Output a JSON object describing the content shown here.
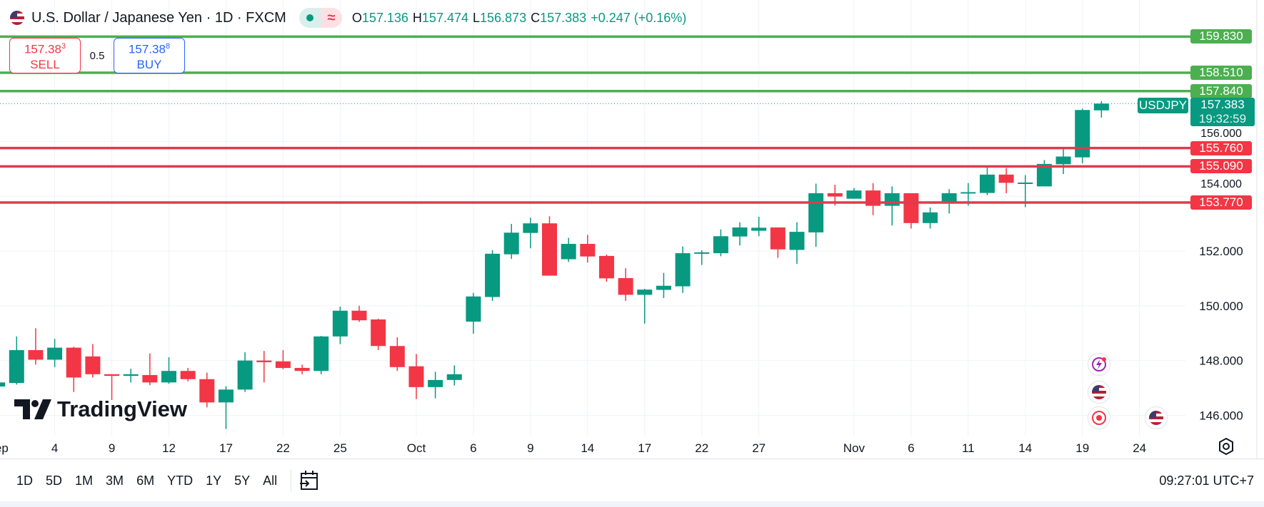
{
  "header": {
    "title": "U.S. Dollar / Japanese Yen · 1D · FXCM",
    "market_status": "open",
    "ohlc": {
      "o_label": "O",
      "o": "157.136",
      "h_label": "H",
      "h": "157.474",
      "l_label": "L",
      "l": "156.873",
      "c_label": "C",
      "c": "157.383",
      "change": "+0.247 (+0.16%)"
    }
  },
  "trade": {
    "sell_price": "157.38",
    "sell_sup": "3",
    "sell_label": "SELL",
    "spread": "0.5",
    "buy_price": "157.38",
    "buy_sup": "8",
    "buy_label": "BUY"
  },
  "levels": [
    {
      "price": 159.83,
      "label": "159.830",
      "color": "#4caf50"
    },
    {
      "price": 158.51,
      "label": "158.510",
      "color": "#4caf50"
    },
    {
      "price": 157.84,
      "label": "157.840",
      "color": "#4caf50"
    },
    {
      "price": 155.76,
      "label": "155.760",
      "color": "#dd3c4f"
    },
    {
      "price": 155.09,
      "label": "155.090",
      "color": "#dd3c4f"
    },
    {
      "price": 153.77,
      "label": "153.770",
      "color": "#dd3c4f"
    }
  ],
  "current": {
    "symbol": "USDJPY",
    "price": "157.383",
    "countdown": "19:32:59"
  },
  "price_axis": [
    "146.000",
    "148.000",
    "150.000",
    "152.000",
    "154.000",
    "156.000"
  ],
  "watermark": "TradingView",
  "ranges": [
    "1D",
    "5D",
    "1M",
    "3M",
    "6M",
    "YTD",
    "1Y",
    "5Y",
    "All"
  ],
  "clock": "09:27:01 UTC+7",
  "colors": {
    "up": "#089981",
    "down": "#f23645"
  },
  "icons": [
    "flag-us-icon",
    "market-open-icon",
    "wave-icon",
    "calendar-goto-icon",
    "settings-icon",
    "lightning-event-icon",
    "us-flag-event-icon",
    "record-event-icon"
  ],
  "chart_data": {
    "type": "candlestick",
    "ylim": [
      145.2,
      160.5
    ],
    "grid": true,
    "x_ticks": [
      {
        "label": "Sep",
        "date": "Sep 1"
      },
      {
        "label": "4",
        "date": "Sep 4"
      },
      {
        "label": "9",
        "date": "Sep 9"
      },
      {
        "label": "12",
        "date": "Sep 12"
      },
      {
        "label": "17",
        "date": "Sep 17"
      },
      {
        "label": "22",
        "date": "Sep 22"
      },
      {
        "label": "25",
        "date": "Sep 25"
      },
      {
        "label": "Oct",
        "date": "Oct 1"
      },
      {
        "label": "6",
        "date": "Oct 6"
      },
      {
        "label": "9",
        "date": "Oct 9"
      },
      {
        "label": "14",
        "date": "Oct 14"
      },
      {
        "label": "17",
        "date": "Oct 17"
      },
      {
        "label": "22",
        "date": "Oct 22"
      },
      {
        "label": "27",
        "date": "Oct 27"
      },
      {
        "label": "Nov",
        "date": "Nov 3"
      },
      {
        "label": "6",
        "date": "Nov 6"
      },
      {
        "label": "11",
        "date": "Nov 11"
      },
      {
        "label": "14",
        "date": "Nov 14"
      },
      {
        "label": "19",
        "date": "Nov 19"
      },
      {
        "label": "24",
        "date": "Nov 24"
      }
    ],
    "candles": [
      [
        "Sep 1",
        147.05,
        147.3,
        146.95,
        147.2
      ],
      [
        "Sep 2",
        147.18,
        148.88,
        147.12,
        148.38
      ],
      [
        "Sep 3",
        148.38,
        149.18,
        147.85,
        148.03
      ],
      [
        "Sep 4",
        148.03,
        148.79,
        147.76,
        148.47
      ],
      [
        "Sep 5",
        148.47,
        148.5,
        146.85,
        147.38
      ],
      [
        "Sep 8",
        148.15,
        148.6,
        147.38,
        147.5
      ],
      [
        "Sep 9",
        147.5,
        147.5,
        146.56,
        147.44
      ],
      [
        "Sep 10",
        147.44,
        147.7,
        147.2,
        147.5
      ],
      [
        "Sep 11",
        147.47,
        148.26,
        147.1,
        147.2
      ],
      [
        "Sep 12",
        147.2,
        148.12,
        147.15,
        147.62
      ],
      [
        "Sep 15",
        147.62,
        147.73,
        147.24,
        147.32
      ],
      [
        "Sep 16",
        147.32,
        147.56,
        146.29,
        146.47
      ],
      [
        "Sep 17",
        146.47,
        147.06,
        145.5,
        146.94
      ],
      [
        "Sep 18",
        146.94,
        148.3,
        146.85,
        148.0
      ],
      [
        "Sep 19",
        148.0,
        148.35,
        147.2,
        147.94
      ],
      [
        "Sep 22",
        147.97,
        148.38,
        147.68,
        147.73
      ],
      [
        "Sep 23",
        147.73,
        147.85,
        147.5,
        147.62
      ],
      [
        "Sep 24",
        147.62,
        148.9,
        147.5,
        148.88
      ],
      [
        "Sep 25",
        148.88,
        149.97,
        148.6,
        149.82
      ],
      [
        "Sep 26",
        149.82,
        150.0,
        149.41,
        149.47
      ],
      [
        "Sep 29",
        149.5,
        149.53,
        148.38,
        148.53
      ],
      [
        "Sep 30",
        148.53,
        148.85,
        147.62,
        147.76
      ],
      [
        "Oct 1",
        147.79,
        148.24,
        146.59,
        147.03
      ],
      [
        "Oct 2",
        147.03,
        147.59,
        146.62,
        147.29
      ],
      [
        "Oct 3",
        147.29,
        147.82,
        147.09,
        147.5
      ],
      [
        "Oct 6",
        149.42,
        150.47,
        148.98,
        150.34
      ],
      [
        "Oct 7",
        150.32,
        152.03,
        150.18,
        151.9
      ],
      [
        "Oct 8",
        151.88,
        152.99,
        151.71,
        152.67
      ],
      [
        "Oct 9",
        152.66,
        153.22,
        152.1,
        153.01
      ],
      [
        "Oct 10",
        153.01,
        153.27,
        151.1,
        151.1
      ],
      [
        "Oct 13",
        151.7,
        152.48,
        151.6,
        152.26
      ],
      [
        "Oct 14",
        152.26,
        152.59,
        151.58,
        151.8
      ],
      [
        "Oct 15",
        151.82,
        151.87,
        150.88,
        151.0
      ],
      [
        "Oct 16",
        151.01,
        151.37,
        150.18,
        150.4
      ],
      [
        "Oct 17",
        150.4,
        150.62,
        149.35,
        150.59
      ],
      [
        "Oct 20",
        150.58,
        151.2,
        150.28,
        150.73
      ],
      [
        "Oct 21",
        150.71,
        152.17,
        150.47,
        151.92
      ],
      [
        "Oct 22",
        151.92,
        152.03,
        151.49,
        151.95
      ],
      [
        "Oct 23",
        151.92,
        152.79,
        151.81,
        152.54
      ],
      [
        "Oct 24",
        152.53,
        153.05,
        152.2,
        152.86
      ],
      [
        "Oct 27",
        152.74,
        153.25,
        152.54,
        152.85
      ],
      [
        "Oct 28",
        152.86,
        152.86,
        151.75,
        152.06
      ],
      [
        "Oct 29",
        152.04,
        153.05,
        151.53,
        152.7
      ],
      [
        "Oct 30",
        152.68,
        154.46,
        152.15,
        154.11
      ],
      [
        "Oct 31",
        154.11,
        154.42,
        153.66,
        153.99
      ],
      [
        "Nov 3",
        153.91,
        154.3,
        153.91,
        154.21
      ],
      [
        "Nov 4",
        154.21,
        154.48,
        153.31,
        153.65
      ],
      [
        "Nov 5",
        153.65,
        154.36,
        152.93,
        154.11
      ],
      [
        "Nov 6",
        154.11,
        154.11,
        152.82,
        153.02
      ],
      [
        "Nov 7",
        153.02,
        153.59,
        152.82,
        153.41
      ],
      [
        "Nov 10",
        153.74,
        154.26,
        153.37,
        154.11
      ],
      [
        "Nov 11",
        154.12,
        154.48,
        153.66,
        154.15
      ],
      [
        "Nov 12",
        154.12,
        155.07,
        154.04,
        154.79
      ],
      [
        "Nov 13",
        154.79,
        155.03,
        154.11,
        154.49
      ],
      [
        "Nov 14",
        154.49,
        154.77,
        153.6,
        154.5
      ],
      [
        "Nov 17",
        154.36,
        155.32,
        154.36,
        155.18
      ],
      [
        "Nov 18",
        155.17,
        155.73,
        154.81,
        155.45
      ],
      [
        "Nov 19",
        155.42,
        157.2,
        155.2,
        157.15
      ],
      [
        "Nov 20",
        157.136,
        157.474,
        156.873,
        157.383
      ]
    ]
  }
}
